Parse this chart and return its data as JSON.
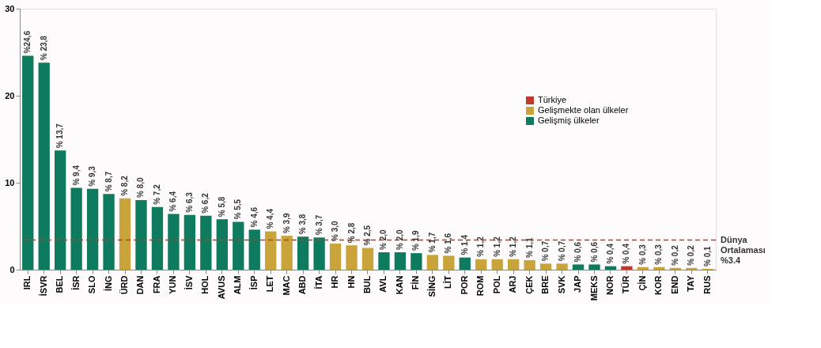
{
  "chart_data": {
    "type": "bar",
    "categories": [
      "IRL",
      "İSVR",
      "BEL",
      "İSR",
      "SLO",
      "İNG",
      "ÜRD",
      "DAN",
      "FRA",
      "YUN",
      "İSV",
      "HOL",
      "AVUS",
      "ALM",
      "İSP",
      "LET",
      "MAC",
      "ABD",
      "İTA",
      "HR",
      "HN",
      "BUL",
      "AVL",
      "KAN",
      "FİN",
      "SİNG",
      "LİT",
      "POR",
      "ROM",
      "POL",
      "ARJ",
      "ÇEK",
      "BRE",
      "SVK",
      "JAP",
      "MEKS",
      "NOR",
      "TÜR",
      "ÇİN",
      "KOR",
      "END",
      "TAY",
      "RUS"
    ],
    "series": [
      {
        "name": "Türkiye",
        "color": "#c0392b",
        "values": [
          null,
          null,
          null,
          null,
          null,
          null,
          null,
          null,
          null,
          null,
          null,
          null,
          null,
          null,
          null,
          null,
          null,
          null,
          null,
          null,
          null,
          null,
          null,
          null,
          null,
          null,
          null,
          null,
          null,
          null,
          null,
          null,
          null,
          null,
          null,
          null,
          null,
          0.4,
          null,
          null,
          null,
          null,
          null
        ],
        "value_labels": [
          null,
          null,
          null,
          null,
          null,
          null,
          null,
          null,
          null,
          null,
          null,
          null,
          null,
          null,
          null,
          null,
          null,
          null,
          null,
          null,
          null,
          null,
          null,
          null,
          null,
          null,
          null,
          null,
          null,
          null,
          null,
          null,
          null,
          null,
          null,
          null,
          null,
          "% 0,4",
          null,
          null,
          null,
          null,
          null
        ]
      },
      {
        "name": "Gelişmekte olan ülkeler",
        "color": "#c9a43a",
        "values": [
          null,
          null,
          null,
          null,
          null,
          null,
          8.2,
          null,
          null,
          null,
          null,
          null,
          null,
          null,
          null,
          4.4,
          3.9,
          null,
          null,
          3.0,
          2.8,
          2.5,
          null,
          null,
          null,
          1.7,
          1.6,
          null,
          1.2,
          1.2,
          1.2,
          1.1,
          0.7,
          0.7,
          null,
          null,
          null,
          null,
          0.3,
          0.3,
          0.2,
          0.2,
          0.1
        ],
        "value_labels": [
          null,
          null,
          null,
          null,
          null,
          null,
          "% 8,2",
          null,
          null,
          null,
          null,
          null,
          null,
          null,
          null,
          "% 4,4",
          "% 3,9",
          null,
          null,
          "% 3,0",
          "% 2,8",
          "% 2,5",
          null,
          null,
          null,
          "% 1,7",
          "% 1,6",
          null,
          "% 1,2",
          "% 1,2",
          "% 1,2",
          "% 1,1",
          "% 0,7",
          "% 0,7",
          null,
          null,
          null,
          null,
          "% 0,3",
          "% 0,3",
          "% 0,2",
          "% 0,2",
          "% 0,1"
        ]
      },
      {
        "name": "Gelişmiş ülkeler",
        "color": "#0e7a5e",
        "values": [
          24.6,
          23.8,
          13.7,
          9.4,
          9.3,
          8.7,
          null,
          8.0,
          7.2,
          6.4,
          6.3,
          6.2,
          5.8,
          5.5,
          4.6,
          null,
          null,
          3.8,
          3.7,
          null,
          null,
          null,
          2.0,
          2.0,
          1.9,
          null,
          null,
          1.4,
          null,
          null,
          null,
          null,
          null,
          null,
          0.6,
          0.6,
          0.4,
          null,
          null,
          null,
          null,
          null,
          null
        ],
        "value_labels": [
          "%24,6",
          "% 23,8",
          "% 13,7",
          "% 9,4",
          "% 9,3",
          "% 8,7",
          null,
          "% 8,0",
          "% 7,2",
          "% 6,4",
          "% 6,3",
          "% 6,2",
          "% 5,8",
          "% 5,5",
          "% 4,6",
          null,
          null,
          "% 3,8",
          "% 3,7",
          null,
          null,
          null,
          "% 2,0",
          "% 2,0",
          "% 1,9",
          null,
          null,
          "% 1,4",
          null,
          null,
          null,
          null,
          null,
          null,
          "% 0,6",
          "% 0,6",
          "% 0,4",
          null,
          null,
          null,
          null,
          null,
          null
        ]
      }
    ],
    "ylim": [
      0,
      30
    ],
    "yticks": [
      0,
      10,
      20,
      30
    ],
    "grid": false,
    "legend": "top right",
    "ref_lines": [
      {
        "axis": "y",
        "value": 3.4,
        "label": "Dünya\nOrtalaması\n%3.4",
        "color": "#c0392b",
        "line_style": "dashed"
      }
    ]
  }
}
